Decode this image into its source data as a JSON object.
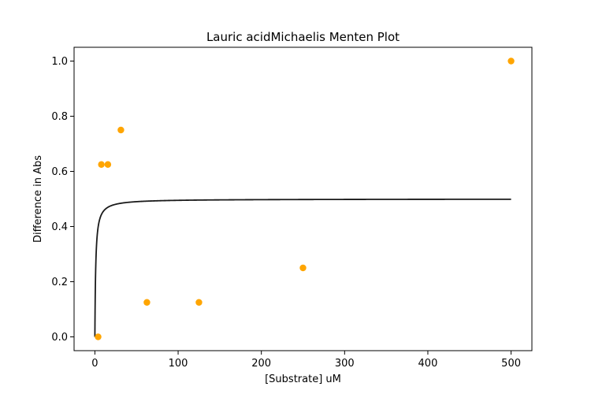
{
  "chart_data": {
    "type": "scatter",
    "title": "Lauric acidMichaelis Menten Plot",
    "xlabel": "[Substrate] uM",
    "ylabel": "Difference in Abs",
    "xlim": [
      -25,
      525
    ],
    "ylim": [
      -0.05,
      1.05
    ],
    "x_ticks": [
      0,
      100,
      200,
      300,
      400,
      500
    ],
    "y_ticks": [
      0.0,
      0.2,
      0.4,
      0.6,
      0.8,
      1.0
    ],
    "x_tick_labels": [
      "0",
      "100",
      "200",
      "300",
      "400",
      "500"
    ],
    "y_tick_labels": [
      "0.0",
      "0.2",
      "0.4",
      "0.6",
      "0.8",
      "1.0"
    ],
    "grid": false,
    "legend": false,
    "series": [
      {
        "type": "scatter",
        "color": "#FFA500",
        "x": [
          3.9,
          7.8,
          15.6,
          31.25,
          62.5,
          125,
          250,
          500
        ],
        "y": [
          0.0,
          0.625,
          0.625,
          0.75,
          0.125,
          0.125,
          0.25,
          1.0
        ]
      },
      {
        "type": "line",
        "color": "#1a1a1a",
        "model": "michaelis-menten",
        "vmax": 0.5,
        "km": 1.0,
        "x_range": [
          0,
          500
        ]
      }
    ]
  }
}
